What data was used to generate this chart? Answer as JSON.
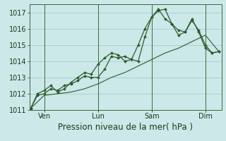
{
  "title": "Pression niveau de la mer( hPa )",
  "bg_color": "#cce8e8",
  "grid_color": "#99cccc",
  "line_color": "#2d5a2d",
  "marker_color": "#2d5a2d",
  "ylim": [
    1011.0,
    1017.5
  ],
  "xlim": [
    -0.05,
    7.1
  ],
  "day_labels": [
    "Ven",
    "Lun",
    "Sam",
    "Dim"
  ],
  "day_positions": [
    0.5,
    2.5,
    4.5,
    6.5
  ],
  "day_vlines": [
    0.5,
    2.5,
    4.5,
    6.5
  ],
  "series1_x": [
    0.0,
    0.25,
    0.5,
    0.75,
    1.0,
    1.25,
    1.5,
    1.75,
    2.0,
    2.25,
    2.5,
    2.75,
    3.0,
    3.25,
    3.5,
    3.75,
    4.0,
    4.25,
    4.5,
    4.75,
    5.0,
    5.25,
    5.5,
    5.75,
    6.0,
    6.25,
    6.5,
    6.75,
    7.0
  ],
  "series1_y": [
    1011.1,
    1011.9,
    1012.0,
    1012.3,
    1012.2,
    1012.5,
    1012.6,
    1012.8,
    1013.1,
    1013.0,
    1013.0,
    1013.5,
    1014.3,
    1014.2,
    1014.3,
    1014.1,
    1014.0,
    1015.5,
    1016.7,
    1017.1,
    1017.2,
    1016.3,
    1015.9,
    1015.8,
    1016.5,
    1015.9,
    1015.0,
    1014.5,
    1014.6
  ],
  "series2_x": [
    0.0,
    0.25,
    0.5,
    0.75,
    1.0,
    1.25,
    1.5,
    1.75,
    2.0,
    2.25,
    2.5,
    2.75,
    3.0,
    3.25,
    3.5,
    3.75,
    4.0,
    4.25,
    4.5,
    4.75,
    5.0,
    5.25,
    5.5,
    5.75,
    6.0,
    6.25,
    6.5,
    6.75,
    7.0
  ],
  "series2_y": [
    1011.1,
    1012.0,
    1012.2,
    1012.5,
    1012.1,
    1012.3,
    1012.7,
    1013.0,
    1013.3,
    1013.2,
    1013.8,
    1014.2,
    1014.5,
    1014.4,
    1014.0,
    1014.1,
    1015.0,
    1016.0,
    1016.7,
    1017.2,
    1016.6,
    1016.3,
    1015.6,
    1015.8,
    1016.6,
    1015.8,
    1014.8,
    1014.5,
    1014.6
  ],
  "series3_x": [
    0.0,
    0.5,
    1.0,
    1.5,
    2.0,
    2.5,
    3.0,
    3.5,
    4.0,
    4.5,
    5.0,
    5.5,
    6.0,
    6.5,
    7.0
  ],
  "series3_y": [
    1011.1,
    1011.9,
    1012.0,
    1012.1,
    1012.3,
    1012.6,
    1013.0,
    1013.3,
    1013.7,
    1014.1,
    1014.5,
    1014.8,
    1015.2,
    1015.6,
    1014.6
  ],
  "title_fontsize": 8.5,
  "tick_fontsize": 7
}
